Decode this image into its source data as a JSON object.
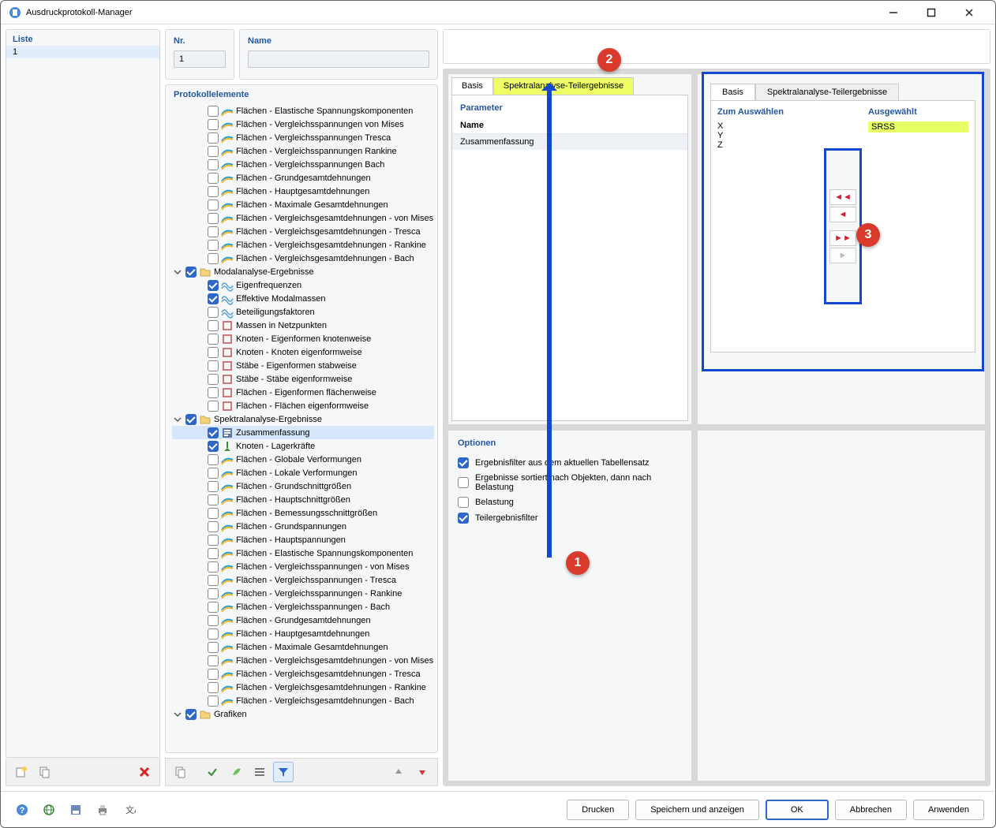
{
  "window": {
    "title": "Ausdruckprotokoll-Manager"
  },
  "list": {
    "header": "Liste",
    "items": [
      "1"
    ]
  },
  "nr": {
    "label": "Nr.",
    "value": "1"
  },
  "name": {
    "label": "Name",
    "value": ""
  },
  "protokoll": {
    "header": "Protokollelemente"
  },
  "tree": [
    {
      "checked": false,
      "label": "Flächen - Elastische Spannungskomponenten",
      "icon": "surf"
    },
    {
      "checked": false,
      "label": "Flächen - Vergleichsspannungen von Mises",
      "icon": "surf"
    },
    {
      "checked": false,
      "label": "Flächen - Vergleichsspannungen Tresca",
      "icon": "surf"
    },
    {
      "checked": false,
      "label": "Flächen - Vergleichsspannungen Rankine",
      "icon": "surf"
    },
    {
      "checked": false,
      "label": "Flächen - Vergleichsspannungen Bach",
      "icon": "surf"
    },
    {
      "checked": false,
      "label": "Flächen - Grundgesamtdehnungen",
      "icon": "surf"
    },
    {
      "checked": false,
      "label": "Flächen - Hauptgesamtdehnungen",
      "icon": "surf"
    },
    {
      "checked": false,
      "label": "Flächen - Maximale Gesamtdehnungen",
      "icon": "surf"
    },
    {
      "checked": false,
      "label": "Flächen - Vergleichsgesamtdehnungen - von Mises",
      "icon": "surf"
    },
    {
      "checked": false,
      "label": "Flächen - Vergleichsgesamtdehnungen - Tresca",
      "icon": "surf"
    },
    {
      "checked": false,
      "label": "Flächen - Vergleichsgesamtdehnungen - Rankine",
      "icon": "surf"
    },
    {
      "checked": false,
      "label": "Flächen - Vergleichsgesamtdehnungen - Bach",
      "icon": "surf"
    },
    {
      "parent": true,
      "checked": true,
      "label": "Modalanalyse-Ergebnisse",
      "icon": "folder"
    },
    {
      "checked": true,
      "label": "Eigenfrequenzen",
      "icon": "wave"
    },
    {
      "checked": true,
      "label": "Effektive Modalmassen",
      "icon": "wave"
    },
    {
      "checked": false,
      "label": "Beteiligungsfaktoren",
      "icon": "wave"
    },
    {
      "checked": false,
      "label": "Massen in Netzpunkten",
      "icon": "node"
    },
    {
      "checked": false,
      "label": "Knoten - Eigenformen knotenweise",
      "icon": "node"
    },
    {
      "checked": false,
      "label": "Knoten - Knoten eigenformweise",
      "icon": "node"
    },
    {
      "checked": false,
      "label": "Stäbe - Eigenformen stabweise",
      "icon": "node"
    },
    {
      "checked": false,
      "label": "Stäbe - Stäbe eigenformweise",
      "icon": "node"
    },
    {
      "checked": false,
      "label": "Flächen - Eigenformen flächenweise",
      "icon": "node"
    },
    {
      "checked": false,
      "label": "Flächen - Flächen eigenformweise",
      "icon": "node"
    },
    {
      "parent": true,
      "checked": true,
      "label": "Spektralanalyse-Ergebnisse",
      "icon": "folder"
    },
    {
      "checked": true,
      "label": "Zusammenfassung",
      "icon": "summary",
      "selected": true
    },
    {
      "checked": true,
      "label": "Knoten - Lagerkräfte",
      "icon": "support"
    },
    {
      "checked": false,
      "label": "Flächen - Globale Verformungen",
      "icon": "surf"
    },
    {
      "checked": false,
      "label": "Flächen - Lokale Verformungen",
      "icon": "surf"
    },
    {
      "checked": false,
      "label": "Flächen - Grundschnittgrößen",
      "icon": "surf"
    },
    {
      "checked": false,
      "label": "Flächen - Hauptschnittgrößen",
      "icon": "surf"
    },
    {
      "checked": false,
      "label": "Flächen - Bemessungsschnittgrößen",
      "icon": "surf"
    },
    {
      "checked": false,
      "label": "Flächen - Grundspannungen",
      "icon": "surf"
    },
    {
      "checked": false,
      "label": "Flächen - Hauptspannungen",
      "icon": "surf"
    },
    {
      "checked": false,
      "label": "Flächen - Elastische Spannungskomponenten",
      "icon": "surf"
    },
    {
      "checked": false,
      "label": "Flächen - Vergleichsspannungen - von Mises",
      "icon": "surf"
    },
    {
      "checked": false,
      "label": "Flächen - Vergleichsspannungen - Tresca",
      "icon": "surf"
    },
    {
      "checked": false,
      "label": "Flächen - Vergleichsspannungen - Rankine",
      "icon": "surf"
    },
    {
      "checked": false,
      "label": "Flächen - Vergleichsspannungen - Bach",
      "icon": "surf"
    },
    {
      "checked": false,
      "label": "Flächen - Grundgesamtdehnungen",
      "icon": "surf"
    },
    {
      "checked": false,
      "label": "Flächen - Hauptgesamtdehnungen",
      "icon": "surf"
    },
    {
      "checked": false,
      "label": "Flächen - Maximale Gesamtdehnungen",
      "icon": "surf"
    },
    {
      "checked": false,
      "label": "Flächen - Vergleichsgesamtdehnungen - von Mises",
      "icon": "surf"
    },
    {
      "checked": false,
      "label": "Flächen - Vergleichsgesamtdehnungen - Tresca",
      "icon": "surf"
    },
    {
      "checked": false,
      "label": "Flächen - Vergleichsgesamtdehnungen - Rankine",
      "icon": "surf"
    },
    {
      "checked": false,
      "label": "Flächen - Vergleichsgesamtdehnungen - Bach",
      "icon": "surf"
    },
    {
      "parent": true,
      "checked": true,
      "label": "Grafiken",
      "icon": "folder"
    }
  ],
  "tabs1": {
    "basis": "Basis",
    "spek": "Spektralanalyse-Teilergebnisse"
  },
  "param": {
    "header": "Parameter",
    "col_name": "Name",
    "row1": "Zusammenfassung"
  },
  "opt": {
    "header": "Optionen",
    "o1": {
      "checked": true,
      "label": "Ergebnisfilter aus dem aktuellen Tabellensatz"
    },
    "o2": {
      "checked": false,
      "label": "Ergebnisse sortiert nach Objekten, dann nach Belastung"
    },
    "o3": {
      "checked": false,
      "label": "Belastung"
    },
    "o4": {
      "checked": true,
      "label": "Teilergebnisfilter"
    }
  },
  "popup": {
    "tab_basis": "Basis",
    "tab_spek": "Spektralanalyse-Teilergebnisse",
    "avail_head": "Zum Auswählen",
    "avail": [
      "X",
      "Y",
      "Z"
    ],
    "sel_head": "Ausgewählt",
    "sel": [
      "SRSS"
    ]
  },
  "markers": {
    "m1": "1",
    "m2": "2",
    "m3": "3"
  },
  "footer": {
    "drucken": "Drucken",
    "speichern": "Speichern und anzeigen",
    "ok": "OK",
    "abbrechen": "Abbrechen",
    "anwenden": "Anwenden"
  },
  "colors": {
    "accent_blue": "#2f67c9",
    "highlight_yellow": "#efff66",
    "marker_red": "#d93a2b",
    "frame_blue": "#1247cf",
    "panel_bg": "#f6f7f8",
    "panel_border": "#d8d8d8",
    "selection_bg": "#d6e6fb"
  }
}
